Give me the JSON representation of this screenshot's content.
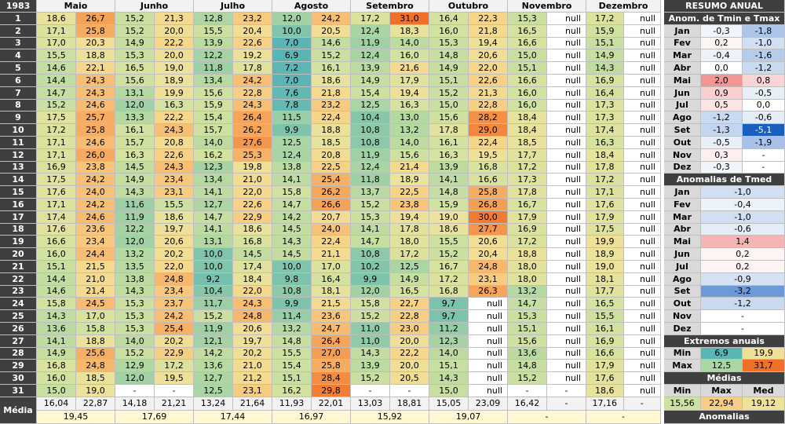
{
  "corner": "1983",
  "months": [
    "Maio",
    "Junho",
    "Julho",
    "Agosto",
    "Setembro",
    "Outubro",
    "Novembro",
    "Dezembro"
  ],
  "days": [
    "1",
    "2",
    "3",
    "4",
    "5",
    "6",
    "7",
    "8",
    "9",
    "10",
    "11",
    "12",
    "13",
    "14",
    "15",
    "16",
    "17",
    "18",
    "19",
    "20",
    "21",
    "22",
    "23",
    "24",
    "25",
    "26",
    "27",
    "28",
    "29",
    "30",
    "31"
  ],
  "rows": [
    [
      "18,6",
      "26,7",
      "15,2",
      "21,3",
      "12,8",
      "23,2",
      "12,0",
      "24,2",
      "17,2",
      "31,0",
      "16,4",
      "22,3",
      "15,3",
      "null",
      "17,2",
      "null"
    ],
    [
      "17,1",
      "25,8",
      "15,2",
      "20,0",
      "15,5",
      "20,4",
      "10,0",
      "20,5",
      "12,4",
      "18,3",
      "16,0",
      "21,8",
      "16,5",
      "null",
      "15,9",
      "null"
    ],
    [
      "17,0",
      "20,3",
      "14,9",
      "22,2",
      "13,9",
      "22,6",
      "7,0",
      "14,6",
      "11,9",
      "14,0",
      "15,3",
      "19,4",
      "16,6",
      "null",
      "15,1",
      "null"
    ],
    [
      "15,5",
      "18,8",
      "15,3",
      "20,0",
      "12,2",
      "19,2",
      "6,9",
      "15,2",
      "12,4",
      "16,0",
      "14,8",
      "20,6",
      "15,0",
      "null",
      "14,9",
      "null"
    ],
    [
      "14,6",
      "22,1",
      "16,5",
      "19,0",
      "11,8",
      "17,8",
      "7,2",
      "16,1",
      "13,9",
      "21,6",
      "14,9",
      "22,0",
      "15,1",
      "null",
      "14,3",
      "null"
    ],
    [
      "14,4",
      "24,3",
      "15,6",
      "18,9",
      "13,4",
      "24,2",
      "7,0",
      "18,6",
      "14,9",
      "17,9",
      "15,1",
      "22,6",
      "16,6",
      "null",
      "16,9",
      "null"
    ],
    [
      "14,7",
      "24,3",
      "13,1",
      "19,9",
      "15,6",
      "22,8",
      "7,6",
      "21,8",
      "15,4",
      "19,4",
      "15,2",
      "21,3",
      "16,0",
      "null",
      "16,4",
      "null"
    ],
    [
      "15,2",
      "24,6",
      "12,0",
      "16,3",
      "15,9",
      "24,3",
      "7,8",
      "23,2",
      "12,5",
      "16,3",
      "15,0",
      "22,8",
      "16,0",
      "null",
      "17,3",
      "null"
    ],
    [
      "17,5",
      "25,7",
      "13,3",
      "22,2",
      "15,4",
      "26,4",
      "11,5",
      "22,4",
      "10,4",
      "13,0",
      "15,6",
      "28,2",
      "18,4",
      "null",
      "17,3",
      "null"
    ],
    [
      "17,2",
      "25,8",
      "16,1",
      "24,3",
      "15,7",
      "26,2",
      "9,9",
      "18,8",
      "10,8",
      "13,2",
      "17,8",
      "29,0",
      "18,4",
      "null",
      "17,4",
      "null"
    ],
    [
      "17,1",
      "24,6",
      "15,7",
      "20,8",
      "14,0",
      "27,6",
      "12,5",
      "18,5",
      "10,8",
      "14,0",
      "16,1",
      "22,4",
      "18,5",
      "null",
      "16,3",
      "null"
    ],
    [
      "17,1",
      "26,0",
      "16,3",
      "22,6",
      "16,2",
      "25,3",
      "12,4",
      "20,8",
      "11,9",
      "15,6",
      "16,3",
      "19,5",
      "17,7",
      "null",
      "18,4",
      "null"
    ],
    [
      "16,9",
      "23,8",
      "14,5",
      "24,3",
      "12,3",
      "19,8",
      "13,8",
      "22,5",
      "12,4",
      "21,4",
      "13,9",
      "16,8",
      "17,2",
      "null",
      "17,8",
      "null"
    ],
    [
      "17,5",
      "24,2",
      "14,9",
      "23,4",
      "13,4",
      "21,0",
      "14,1",
      "25,4",
      "11,8",
      "18,9",
      "14,1",
      "16,6",
      "17,3",
      "null",
      "17,2",
      "null"
    ],
    [
      "17,6",
      "24,0",
      "14,3",
      "23,1",
      "14,1",
      "22,0",
      "15,8",
      "26,2",
      "13,7",
      "22,5",
      "14,8",
      "25,8",
      "17,8",
      "null",
      "17,1",
      "null"
    ],
    [
      "17,1",
      "24,2",
      "11,6",
      "15,5",
      "12,7",
      "22,6",
      "14,7",
      "26,6",
      "15,2",
      "23,8",
      "15,9",
      "26,8",
      "16,7",
      "null",
      "17,6",
      "null"
    ],
    [
      "17,4",
      "24,6",
      "11,9",
      "18,6",
      "14,7",
      "22,9",
      "14,2",
      "20,7",
      "15,3",
      "19,4",
      "19,0",
      "30,0",
      "17,9",
      "null",
      "17,9",
      "null"
    ],
    [
      "17,6",
      "23,6",
      "12,2",
      "19,7",
      "14,1",
      "18,6",
      "14,5",
      "24,0",
      "14,1",
      "17,8",
      "18,6",
      "27,7",
      "16,9",
      "null",
      "17,5",
      "null"
    ],
    [
      "16,6",
      "23,4",
      "12,0",
      "20,6",
      "13,1",
      "16,8",
      "14,3",
      "22,4",
      "14,7",
      "18,0",
      "15,5",
      "20,6",
      "17,2",
      "null",
      "19,9",
      "null"
    ],
    [
      "16,0",
      "24,4",
      "13,2",
      "20,2",
      "10,0",
      "14,5",
      "14,5",
      "21,1",
      "10,8",
      "17,2",
      "15,2",
      "20,4",
      "18,8",
      "null",
      "18,9",
      "null"
    ],
    [
      "15,1",
      "21,5",
      "13,5",
      "22,0",
      "10,0",
      "17,4",
      "10,0",
      "17,0",
      "10,2",
      "12,5",
      "16,7",
      "24,8",
      "18,0",
      "null",
      "19,0",
      "null"
    ],
    [
      "14,4",
      "21,0",
      "13,8",
      "24,8",
      "9,2",
      "18,4",
      "9,8",
      "16,4",
      "9,9",
      "14,9",
      "17,2",
      "23,1",
      "18,0",
      "null",
      "18,1",
      "null"
    ],
    [
      "14,6",
      "21,4",
      "14,3",
      "23,4",
      "10,4",
      "22,0",
      "10,8",
      "18,1",
      "12,0",
      "16,5",
      "16,8",
      "26,3",
      "13,2",
      "null",
      "17,7",
      "null"
    ],
    [
      "15,8",
      "24,5",
      "15,3",
      "23,7",
      "11,7",
      "24,3",
      "9,9",
      "21,5",
      "15,8",
      "22,7",
      "9,7",
      "null",
      "14,7",
      "null",
      "16,5",
      "null"
    ],
    [
      "14,3",
      "17,0",
      "15,3",
      "24,2",
      "15,2",
      "24,8",
      "11,4",
      "23,6",
      "15,2",
      "22,8",
      "9,7",
      "null",
      "15,3",
      "null",
      "15,5",
      "null"
    ],
    [
      "13,6",
      "15,8",
      "15,3",
      "25,4",
      "11,9",
      "20,6",
      "13,2",
      "24,7",
      "11,0",
      "23,0",
      "11,2",
      "null",
      "15,1",
      "null",
      "16,1",
      "null"
    ],
    [
      "14,1",
      "18,8",
      "14,0",
      "20,2",
      "12,1",
      "19,7",
      "14,8",
      "26,4",
      "11,0",
      "20,0",
      "12,3",
      "null",
      "15,6",
      "null",
      "16,9",
      "null"
    ],
    [
      "14,9",
      "25,6",
      "15,2",
      "22,9",
      "14,2",
      "20,2",
      "15,5",
      "27,0",
      "14,3",
      "22,2",
      "14,0",
      "null",
      "13,6",
      "null",
      "16,6",
      "null"
    ],
    [
      "16,8",
      "24,8",
      "12,9",
      "17,2",
      "13,6",
      "21,0",
      "15,4",
      "25,8",
      "13,9",
      "20,0",
      "15,1",
      "null",
      "14,8",
      "null",
      "17,9",
      "null"
    ],
    [
      "16,0",
      "18,5",
      "12,0",
      "19,5",
      "12,7",
      "21,2",
      "15,1",
      "28,4",
      "15,2",
      "20,5",
      "14,3",
      "null",
      "15,2",
      "null",
      "17,6",
      "null"
    ],
    [
      "15,0",
      "19,0",
      "-",
      "-",
      "12,5",
      "23,1",
      "16,2",
      "29,8",
      "-",
      "-",
      "15,0",
      "null",
      "-",
      "-",
      "18,6",
      "null"
    ]
  ],
  "media_label": "Média",
  "media_pairs": [
    "16,04",
    "22,87",
    "14,18",
    "21,21",
    "13,24",
    "21,64",
    "11,93",
    "22,01",
    "13,03",
    "18,81",
    "15,05",
    "23,09",
    "16,42",
    "-",
    "17,16",
    "-"
  ],
  "media_means": [
    "19,45",
    "17,69",
    "17,44",
    "16,97",
    "15,92",
    "19,07",
    "-",
    "-"
  ],
  "summary": {
    "title": "RESUMO ANUAL",
    "anom_title": "Anom. de Tmin e Tmax",
    "anom_rows": [
      [
        "Jan",
        "-0,3",
        "-1,8"
      ],
      [
        "Fev",
        "0,2",
        "-1,0"
      ],
      [
        "Mar",
        "-0,4",
        "-1,6"
      ],
      [
        "Abr",
        "0,0",
        "-1,2"
      ],
      [
        "Mai",
        "2,0",
        "0,8"
      ],
      [
        "Jun",
        "0,9",
        "-0,5"
      ],
      [
        "Jul",
        "0,5",
        "0,0"
      ],
      [
        "Ago",
        "-1,2",
        "-0,6"
      ],
      [
        "Set",
        "-1,3",
        "-5,1"
      ],
      [
        "Out",
        "-0,5",
        "-1,9"
      ],
      [
        "Nov",
        "0,3",
        "-"
      ],
      [
        "Dez",
        "-0,3",
        "-"
      ]
    ],
    "tmed_title": "Anomalias de Tmed",
    "tmed_rows": [
      [
        "Jan",
        "-1,0"
      ],
      [
        "Fev",
        "-0,4"
      ],
      [
        "Mar",
        "-1,0"
      ],
      [
        "Abr",
        "-0,6"
      ],
      [
        "Mai",
        "1,4"
      ],
      [
        "Jun",
        "0,2"
      ],
      [
        "Jul",
        "0,2"
      ],
      [
        "Ago",
        "-0,9"
      ],
      [
        "Set",
        "-3,2"
      ],
      [
        "Out",
        "-1,2"
      ],
      [
        "Nov",
        "-"
      ],
      [
        "Dez",
        "-"
      ]
    ],
    "extremes_title": "Extremos anuais",
    "extremes_rows": [
      [
        "Min",
        "6,9",
        "19,9"
      ],
      [
        "Max",
        "12,5",
        "31,7"
      ]
    ],
    "means_title": "Médias",
    "means_header": [
      "Min",
      "Max",
      "Med"
    ],
    "means_values": [
      "15,56",
      "22,94",
      "19,12"
    ],
    "anomalies_title": "Anomalias"
  }
}
